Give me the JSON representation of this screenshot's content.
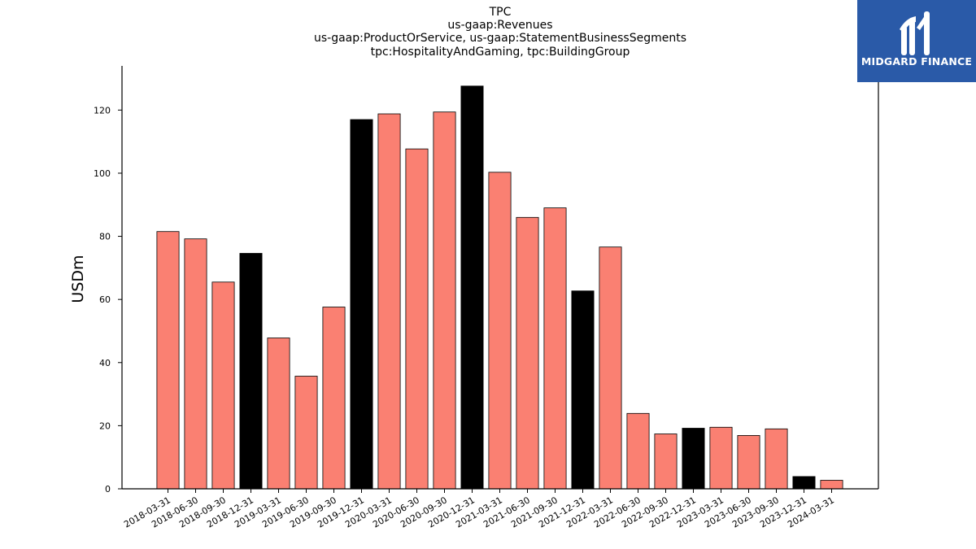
{
  "chart_data": {
    "type": "bar",
    "title_lines": [
      "TPC",
      "us-gaap:Revenues",
      "us-gaap:ProductOrService, us-gaap:StatementBusinessSegments",
      "tpc:HospitalityAndGaming, tpc:BuildingGroup"
    ],
    "ylabel": "USDm",
    "xlabel": "",
    "ylim": [
      0,
      134
    ],
    "yticks": [
      0,
      20,
      40,
      60,
      80,
      100,
      120
    ],
    "categories": [
      "2018-03-31",
      "2018-06-30",
      "2018-09-30",
      "2018-12-31",
      "2019-03-31",
      "2019-06-30",
      "2019-09-30",
      "2019-12-31",
      "2020-03-31",
      "2020-06-30",
      "2020-09-30",
      "2020-12-31",
      "2021-03-31",
      "2021-06-30",
      "2021-09-30",
      "2021-12-31",
      "2022-03-31",
      "2022-06-30",
      "2022-09-30",
      "2022-12-31",
      "2023-03-31",
      "2023-06-30",
      "2023-09-30",
      "2023-12-31",
      "2024-03-31"
    ],
    "values": [
      81.5,
      79.2,
      65.5,
      74.6,
      47.8,
      35.7,
      57.6,
      117.0,
      118.8,
      107.7,
      119.4,
      127.6,
      100.3,
      86.0,
      89.0,
      62.7,
      76.6,
      23.9,
      17.4,
      19.2,
      19.5,
      16.9,
      19.0,
      3.9,
      2.7
    ],
    "year_end_categories": [
      "2018-12-31",
      "2019-12-31",
      "2020-12-31",
      "2021-12-31",
      "2022-12-31",
      "2023-12-31"
    ],
    "colors": {
      "quarter": "#fa8072",
      "year_end": "#000000",
      "edge": "#000000"
    },
    "grid": false
  },
  "logo": {
    "text": "MIDGARD FINANCE",
    "background": "#2a5aa8"
  }
}
